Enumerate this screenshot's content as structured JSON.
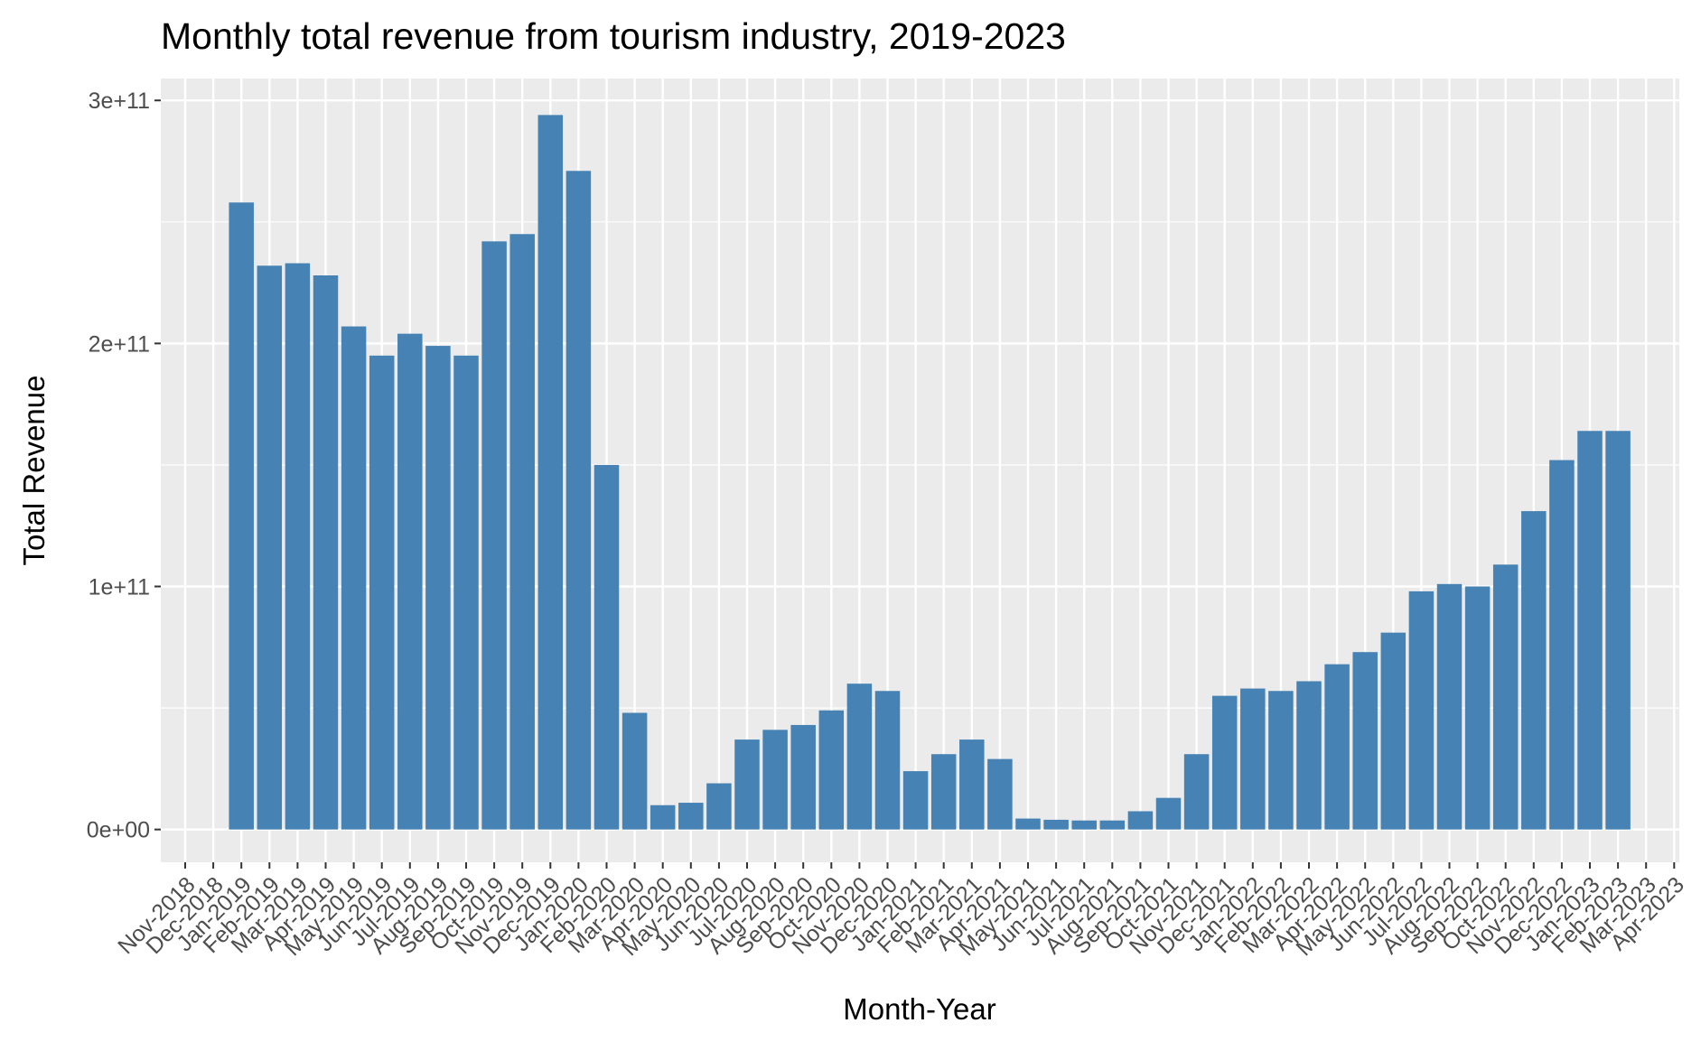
{
  "chart_data": {
    "type": "bar",
    "title": "Monthly total revenue from tourism industry, 2019-2023",
    "xlabel": "Month-Year",
    "ylabel": "Total Revenue",
    "x_ticks": [
      "Nov-2018",
      "Dec-2018",
      "Jan-2019",
      "Feb-2019",
      "Mar-2019",
      "Apr-2019",
      "May-2019",
      "Jun-2019",
      "Jul-2019",
      "Aug-2019",
      "Sep-2019",
      "Oct-2019",
      "Nov-2019",
      "Dec-2019",
      "Jan-2020",
      "Feb-2020",
      "Mar-2020",
      "Apr-2020",
      "May-2020",
      "Jun-2020",
      "Jul-2020",
      "Aug-2020",
      "Sep-2020",
      "Oct-2020",
      "Nov-2020",
      "Dec-2020",
      "Jan-2021",
      "Feb-2021",
      "Mar-2021",
      "Apr-2021",
      "May-2021",
      "Jun-2021",
      "Jul-2021",
      "Aug-2021",
      "Sep-2021",
      "Oct-2021",
      "Nov-2021",
      "Dec-2021",
      "Jan-2022",
      "Feb-2022",
      "Mar-2022",
      "Apr-2022",
      "May-2022",
      "Jun-2022",
      "Jul-2022",
      "Aug-2022",
      "Sep-2022",
      "Oct-2022",
      "Nov-2022",
      "Dec-2022",
      "Jan-2023",
      "Feb-2023",
      "Mar-2023",
      "Apr-2023"
    ],
    "categories": [
      "Jan-2019",
      "Feb-2019",
      "Mar-2019",
      "Apr-2019",
      "May-2019",
      "Jun-2019",
      "Jul-2019",
      "Aug-2019",
      "Sep-2019",
      "Oct-2019",
      "Nov-2019",
      "Dec-2019",
      "Jan-2020",
      "Feb-2020",
      "Mar-2020",
      "Apr-2020",
      "May-2020",
      "Jun-2020",
      "Jul-2020",
      "Aug-2020",
      "Sep-2020",
      "Oct-2020",
      "Nov-2020",
      "Dec-2020",
      "Jan-2021",
      "Feb-2021",
      "Mar-2021",
      "Apr-2021",
      "May-2021",
      "Jun-2021",
      "Jul-2021",
      "Aug-2021",
      "Sep-2021",
      "Oct-2021",
      "Nov-2021",
      "Dec-2021",
      "Jan-2022",
      "Feb-2022",
      "Mar-2022",
      "Apr-2022",
      "May-2022",
      "Jun-2022",
      "Jul-2022",
      "Aug-2022",
      "Sep-2022",
      "Oct-2022",
      "Nov-2022",
      "Dec-2022",
      "Jan-2023",
      "Feb-2023"
    ],
    "values": [
      258000000000,
      232000000000,
      233000000000,
      228000000000,
      207000000000,
      195000000000,
      204000000000,
      199000000000,
      195000000000,
      242000000000,
      245000000000,
      294000000000,
      271000000000,
      150000000000,
      48000000000,
      10000000000,
      11000000000,
      19000000000,
      37000000000,
      41000000000,
      43000000000,
      49000000000,
      60000000000,
      57000000000,
      24000000000,
      31000000000,
      37000000000,
      29000000000,
      4500000000,
      4000000000,
      3700000000,
      3700000000,
      7500000000,
      13000000000,
      31000000000,
      55000000000,
      58000000000,
      57000000000,
      61000000000,
      68000000000,
      73000000000,
      81000000000,
      98000000000,
      101000000000,
      100000000000,
      109000000000,
      131000000000,
      152000000000,
      164000000000,
      164000000000
    ],
    "y_ticks": [
      0,
      100000000000,
      200000000000,
      300000000000
    ],
    "y_tick_labels": [
      "0e+00",
      "1e+11",
      "2e+11",
      "3e+11"
    ],
    "ylim": [
      -13500000000,
      309000000000
    ],
    "bar_color": "#4682B4",
    "panel_color": "#EBEBEB",
    "grid": true,
    "legend": "none"
  }
}
